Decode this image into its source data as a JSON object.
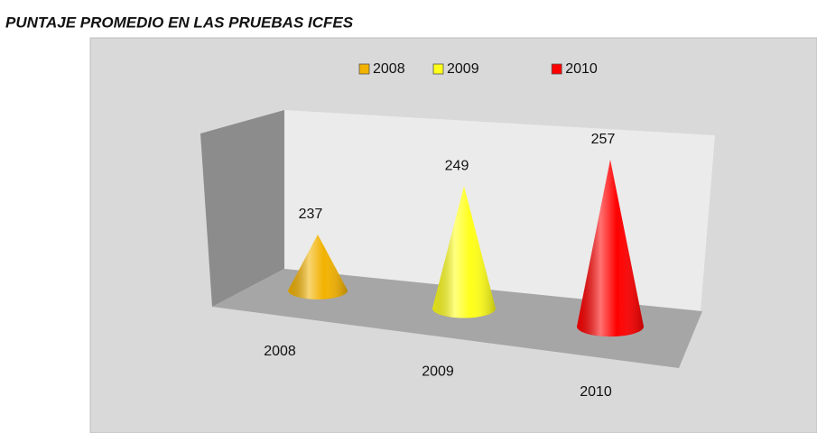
{
  "chart_data": {
    "type": "cone",
    "title": "PUNTAJE PROMEDIO EN LAS PRUEBAS ICFES",
    "categories": [
      "2008",
      "2009",
      "2010"
    ],
    "values": [
      237,
      249,
      257
    ],
    "colors": [
      "#f2b200",
      "#ffff1a",
      "#ff0000"
    ]
  }
}
